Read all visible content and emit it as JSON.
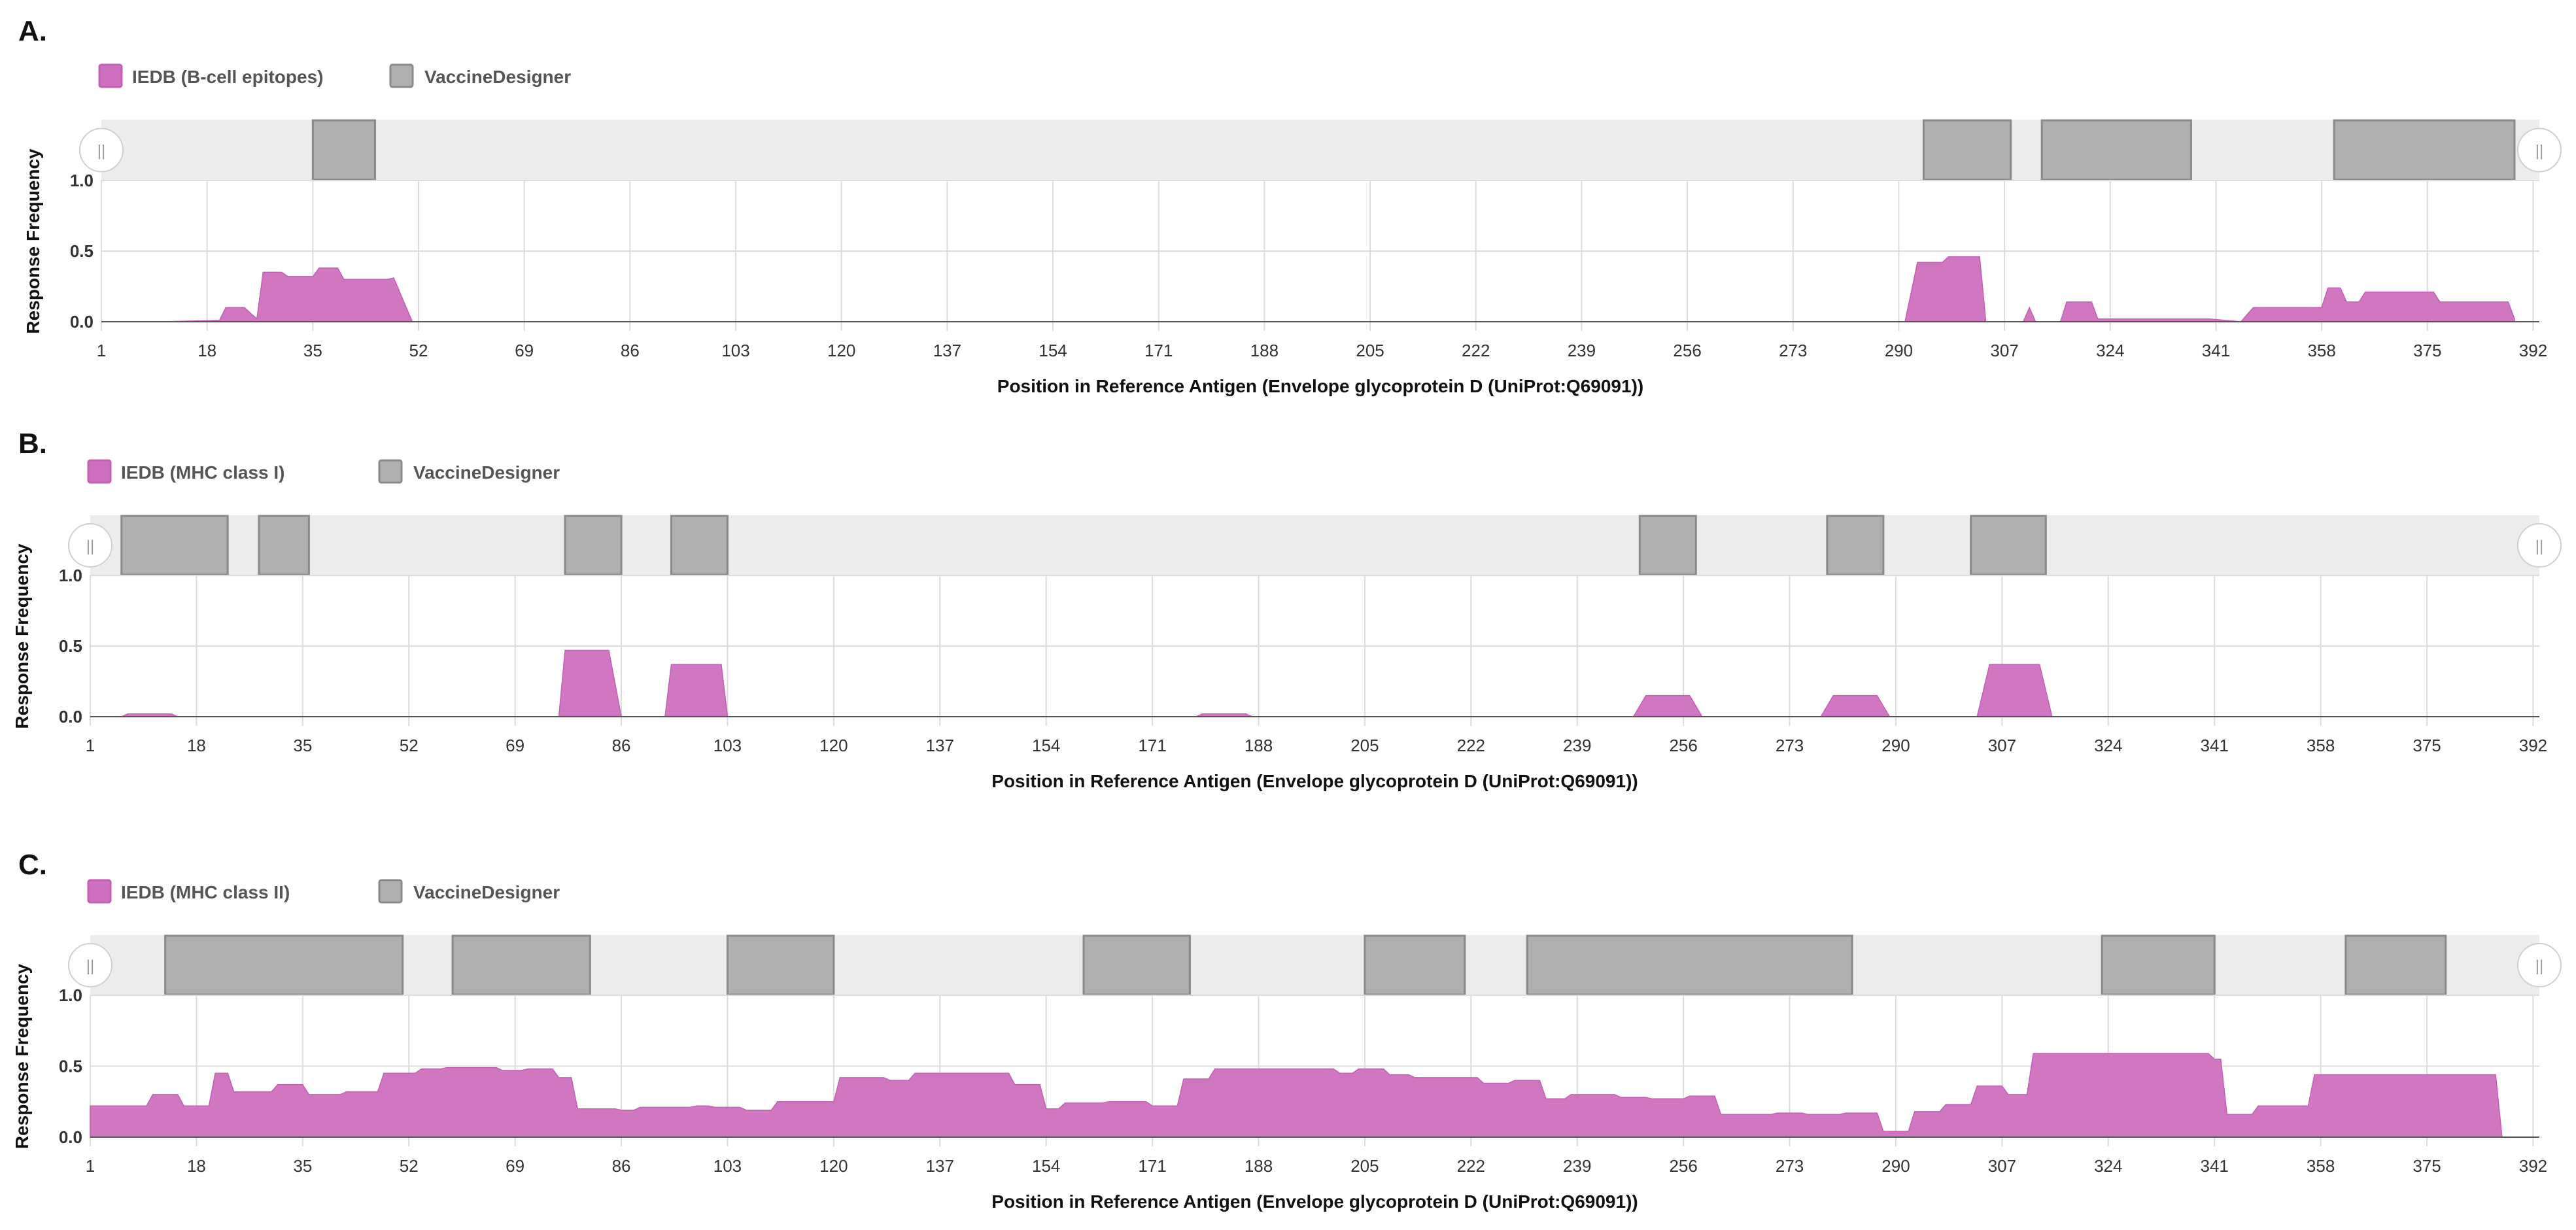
{
  "colors": {
    "epitope": "#cf70bf",
    "epitope_stroke": "#c460b3",
    "vaccine": "#b0b0b0",
    "vaccine_stroke": "#8a8a8a",
    "track": "#ececec",
    "grid": "#dcdcdc"
  },
  "handle_glyph": "||",
  "chart_data": [
    {
      "panel_label": "A.",
      "type": "area",
      "legend": [
        "IEDB (B-cell epitopes)",
        "VaccineDesigner"
      ],
      "xlabel": "Position in Reference Antigen (Envelope glycoprotein D (UniProt:Q69091))",
      "ylabel": "Response Frequency",
      "xlim": [
        1,
        393
      ],
      "ylim": [
        0,
        1.0
      ],
      "x_ticks": [
        1,
        18,
        35,
        52,
        69,
        86,
        103,
        120,
        137,
        154,
        171,
        188,
        205,
        222,
        239,
        256,
        273,
        290,
        307,
        324,
        341,
        358,
        375,
        392
      ],
      "y_ticks": [
        "0.0",
        "0.5",
        "1.0"
      ],
      "vaccine_regions": [
        [
          35,
          45
        ],
        [
          294,
          308
        ],
        [
          313,
          337
        ],
        [
          360,
          389
        ]
      ],
      "series": [
        {
          "name": "IEDB (B-cell epitopes)",
          "x": [
            11,
            20,
            21,
            24,
            26,
            27,
            30,
            31,
            35,
            36,
            39,
            40,
            47,
            48,
            51,
            120,
            137,
            262,
            275,
            291,
            293,
            297,
            298,
            303,
            304,
            307,
            310,
            311,
            312,
            313,
            316,
            317,
            321,
            322,
            324,
            340,
            345,
            347,
            358,
            359,
            361,
            362,
            364,
            365,
            376,
            377,
            388,
            389
          ],
          "y": [
            0,
            0.01,
            0.1,
            0.1,
            0.02,
            0.35,
            0.35,
            0.32,
            0.32,
            0.38,
            0.38,
            0.3,
            0.3,
            0.31,
            0,
            0,
            0,
            0,
            0,
            0,
            0.42,
            0.42,
            0.46,
            0.46,
            0,
            0,
            0,
            0.1,
            0,
            0,
            0,
            0.14,
            0.14,
            0.02,
            0.02,
            0.02,
            0,
            0.1,
            0.1,
            0.24,
            0.24,
            0.14,
            0.14,
            0.21,
            0.21,
            0.14,
            0.14,
            0.02
          ]
        }
      ]
    },
    {
      "panel_label": "B.",
      "type": "area",
      "legend": [
        "IEDB (MHC class I)",
        "VaccineDesigner"
      ],
      "xlabel": "Position in Reference Antigen (Envelope glycoprotein D (UniProt:Q69091))",
      "ylabel": "Response Frequency",
      "xlim": [
        1,
        393
      ],
      "ylim": [
        0,
        1.0
      ],
      "x_ticks": [
        1,
        18,
        35,
        52,
        69,
        86,
        103,
        120,
        137,
        154,
        171,
        188,
        205,
        222,
        239,
        256,
        273,
        290,
        307,
        324,
        341,
        358,
        375,
        392
      ],
      "y_ticks": [
        "0.0",
        "0.5",
        "1.0"
      ],
      "vaccine_regions": [
        [
          6,
          23
        ],
        [
          28,
          36
        ],
        [
          77,
          86
        ],
        [
          94,
          103
        ],
        [
          249,
          258
        ],
        [
          279,
          288
        ],
        [
          302,
          314
        ]
      ],
      "series": [
        {
          "name": "IEDB (MHC class I)",
          "x": [
            6,
            7,
            14,
            15,
            76,
            77,
            84,
            86,
            93,
            94,
            102,
            103,
            178,
            179,
            186,
            187,
            248,
            250,
            257,
            259,
            278,
            280,
            287,
            289,
            303,
            305,
            313,
            315
          ],
          "y": [
            0,
            0.02,
            0.02,
            0,
            0,
            0.47,
            0.47,
            0,
            0,
            0.37,
            0.37,
            0,
            0,
            0.02,
            0.02,
            0,
            0,
            0.15,
            0.15,
            0,
            0,
            0.15,
            0.15,
            0,
            0,
            0.37,
            0.37,
            0
          ]
        }
      ]
    },
    {
      "panel_label": "C.",
      "type": "area",
      "legend": [
        "IEDB (MHC class II)",
        "VaccineDesigner"
      ],
      "xlabel": "Position in Reference Antigen (Envelope glycoprotein D (UniProt:Q69091))",
      "ylabel": "Response Frequency",
      "xlim": [
        1,
        393
      ],
      "ylim": [
        0,
        1.0
      ],
      "x_ticks": [
        1,
        18,
        35,
        52,
        69,
        86,
        103,
        120,
        137,
        154,
        171,
        188,
        205,
        222,
        239,
        256,
        273,
        290,
        307,
        324,
        341,
        358,
        375,
        392
      ],
      "y_ticks": [
        "0.0",
        "0.5",
        "1.0"
      ],
      "vaccine_regions": [
        [
          13,
          51
        ],
        [
          59,
          81
        ],
        [
          103,
          120
        ],
        [
          160,
          177
        ],
        [
          205,
          221
        ],
        [
          231,
          283
        ],
        [
          323,
          341
        ],
        [
          362,
          378
        ]
      ],
      "series": [
        {
          "name": "IEDB (MHC class II)",
          "x": [
            1,
            10,
            11,
            15,
            16,
            20,
            21,
            23,
            24,
            30,
            31,
            35,
            36,
            41,
            42,
            47,
            48,
            53,
            54,
            57,
            58,
            66,
            67,
            70,
            71,
            75,
            76,
            78,
            79,
            85,
            86,
            88,
            89,
            97,
            98,
            100,
            101,
            105,
            106,
            110,
            111,
            120,
            121,
            128,
            129,
            132,
            133,
            148,
            149,
            153,
            154,
            156,
            157,
            163,
            164,
            170,
            171,
            175,
            176,
            180,
            181,
            200,
            201,
            203,
            204,
            208,
            209,
            212,
            213,
            223,
            224,
            228,
            229,
            233,
            234,
            237,
            238,
            245,
            246,
            250,
            251,
            256,
            257,
            261,
            262,
            270,
            271,
            275,
            276,
            281,
            282,
            287,
            288,
            292,
            293,
            297,
            298,
            302,
            303,
            307,
            308,
            311,
            312,
            340,
            341,
            342,
            343,
            347,
            348,
            356,
            357,
            386,
            387
          ],
          "y": [
            0.22,
            0.22,
            0.3,
            0.3,
            0.22,
            0.22,
            0.45,
            0.45,
            0.32,
            0.32,
            0.37,
            0.37,
            0.3,
            0.3,
            0.32,
            0.32,
            0.45,
            0.45,
            0.48,
            0.48,
            0.49,
            0.49,
            0.47,
            0.47,
            0.48,
            0.48,
            0.42,
            0.42,
            0.2,
            0.2,
            0.19,
            0.19,
            0.21,
            0.21,
            0.22,
            0.22,
            0.21,
            0.21,
            0.19,
            0.19,
            0.25,
            0.25,
            0.42,
            0.42,
            0.4,
            0.4,
            0.45,
            0.45,
            0.37,
            0.37,
            0.2,
            0.2,
            0.24,
            0.24,
            0.25,
            0.25,
            0.22,
            0.22,
            0.41,
            0.41,
            0.48,
            0.48,
            0.45,
            0.45,
            0.48,
            0.48,
            0.44,
            0.44,
            0.42,
            0.42,
            0.38,
            0.38,
            0.4,
            0.4,
            0.27,
            0.27,
            0.3,
            0.3,
            0.28,
            0.28,
            0.27,
            0.27,
            0.29,
            0.29,
            0.16,
            0.16,
            0.17,
            0.17,
            0.16,
            0.16,
            0.17,
            0.17,
            0.04,
            0.04,
            0.18,
            0.18,
            0.23,
            0.23,
            0.36,
            0.36,
            0.3,
            0.3,
            0.59,
            0.59,
            0.55,
            0.55,
            0.16,
            0.16,
            0.22,
            0.22,
            0.44,
            0.44,
            0.01
          ]
        }
      ]
    }
  ]
}
